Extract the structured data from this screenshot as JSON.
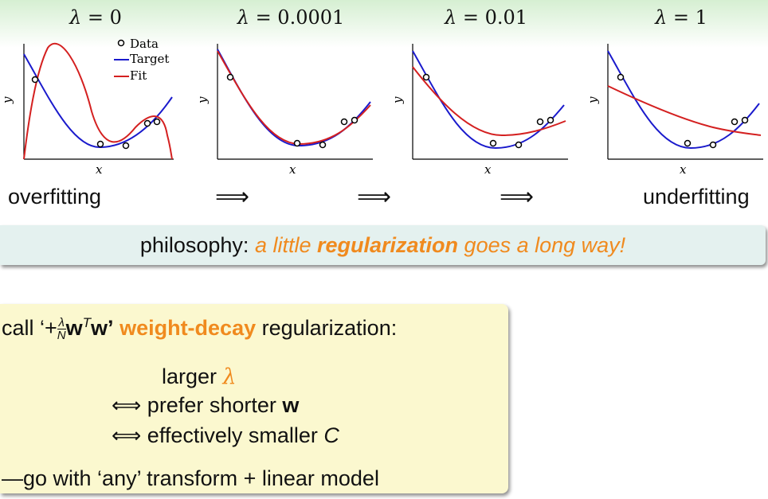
{
  "panels": [
    {
      "lambda_label": "λ",
      "lambda_value": "= 0",
      "fit": "overfit"
    },
    {
      "lambda_label": "λ",
      "lambda_value": "= 0.0001",
      "fit": "good"
    },
    {
      "lambda_label": "λ",
      "lambda_value": "= 0.01",
      "fit": "slight"
    },
    {
      "lambda_label": "λ",
      "lambda_value": "= 1",
      "fit": "underfit"
    }
  ],
  "axis": {
    "x_label": "x",
    "y_label": "y"
  },
  "legend": {
    "data": "Data",
    "target": "Target",
    "fit": "Fit"
  },
  "colors": {
    "target": "#1a1acc",
    "fit": "#d42020",
    "accent": "#f08a1e"
  },
  "row": {
    "left_label": "overfitting",
    "right_label": "underfitting",
    "arrow": "⟹"
  },
  "philosophy": {
    "prefix": "philosophy:",
    "text_a": "a little",
    "text_bold": "regularization",
    "text_b": "goes a long way!"
  },
  "box": {
    "call_prefix": "call ‘+",
    "frac_num": "λ",
    "frac_den": "N",
    "w": "w",
    "sup": "T",
    "w2": "w’",
    "weight_decay": "weight-decay",
    "call_suffix": "regularization:",
    "line1_a": "larger",
    "line1_b": "λ",
    "iff": "⟺",
    "line2_a": "prefer shorter",
    "line2_b": "w",
    "line3_a": "effectively smaller",
    "line3_b": "C",
    "footer": "—go with ‘any’ transform + linear model"
  }
}
